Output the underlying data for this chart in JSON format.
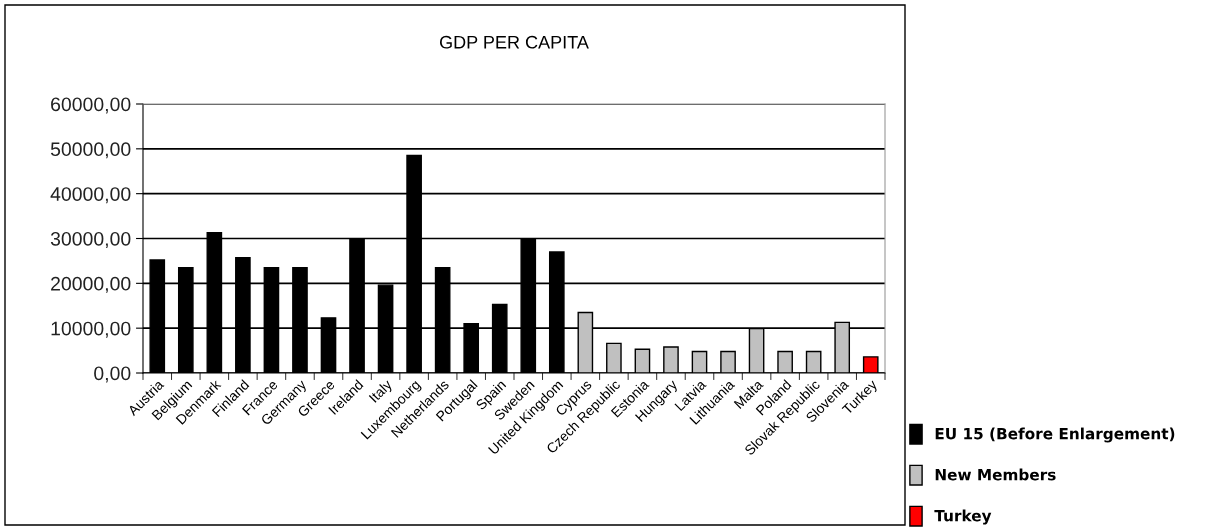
{
  "chart_data": {
    "type": "bar",
    "title": "GDP PER CAPITA",
    "categories": [
      "Austria",
      "Belgium",
      "Denmark",
      "Finland",
      "France",
      "Germany",
      "Greece",
      "Ireland",
      "Italy",
      "Luxembourg",
      "Netherlands",
      "Portugal",
      "Spain",
      "Sweden",
      "United Kingdom",
      "Cyprus",
      "Czech Republic",
      "Estonia",
      "Hungary",
      "Latvia",
      "Lithuania",
      "Malta",
      "Poland",
      "Slovak Republic",
      "Slovenia",
      "Turkey"
    ],
    "stacked": true,
    "series": [
      {
        "name": "EU 15 (Before Enlargement)",
        "color": "#000000",
        "values": [
          25200,
          23500,
          31300,
          25700,
          23500,
          23500,
          12300,
          29900,
          19600,
          48500,
          23500,
          11000,
          15300,
          29900,
          27000,
          null,
          null,
          null,
          null,
          null,
          null,
          null,
          null,
          null,
          null,
          null
        ]
      },
      {
        "name": "New Members",
        "color": "#c0c0c0",
        "values": [
          null,
          null,
          null,
          null,
          null,
          null,
          null,
          null,
          null,
          null,
          null,
          null,
          null,
          null,
          null,
          13500,
          6600,
          5300,
          5800,
          4800,
          4800,
          9900,
          4800,
          4800,
          11300,
          null
        ]
      },
      {
        "name": "Turkey",
        "color": "#ff0000",
        "values": [
          null,
          null,
          null,
          null,
          null,
          null,
          null,
          null,
          null,
          null,
          null,
          null,
          null,
          null,
          null,
          null,
          null,
          null,
          null,
          null,
          null,
          null,
          null,
          null,
          null,
          3600
        ]
      }
    ],
    "ylim": [
      0,
      60000
    ],
    "yticks": [
      {
        "value": 0,
        "label": "0,00"
      },
      {
        "value": 10000,
        "label": "10000,00"
      },
      {
        "value": 20000,
        "label": "20000,00"
      },
      {
        "value": 30000,
        "label": "30000,00"
      },
      {
        "value": 40000,
        "label": "40000,00"
      },
      {
        "value": 50000,
        "label": "50000,00"
      },
      {
        "value": 60000,
        "label": "60000,00"
      }
    ],
    "grid": "y",
    "legend": "bottom right"
  }
}
